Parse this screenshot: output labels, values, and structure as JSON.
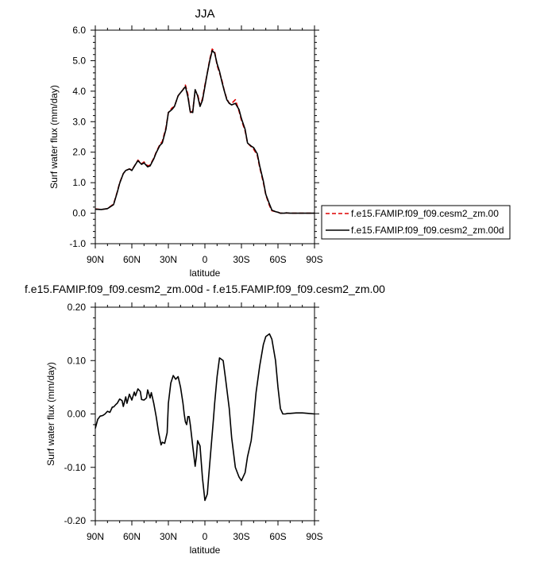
{
  "chart_data": [
    {
      "type": "line",
      "title": "JJA",
      "xlabel": "latitude",
      "ylabel": "Surf water flux (mm/day)",
      "xlim": [
        90,
        -90
      ],
      "ylim": [
        -1.0,
        6.0
      ],
      "xticks": [
        90,
        60,
        30,
        0,
        -30,
        -60,
        -90
      ],
      "xtick_labels": [
        "90N",
        "60N",
        "30N",
        "0",
        "30S",
        "60S",
        "90S"
      ],
      "yticks": [
        -1,
        0,
        1,
        2,
        3,
        4,
        5,
        6
      ],
      "ytick_labels": [
        "-1.0",
        "0.0",
        "1.0",
        "2.0",
        "3.0",
        "4.0",
        "5.0",
        "6.0"
      ],
      "grid": false,
      "legend": "outside-right",
      "series": [
        {
          "name": "f.e15.FAMIP.f09_f09.cesm2_zm.00",
          "color": "#dd0000",
          "dash": "dashed",
          "x": [
            90,
            85,
            80,
            75,
            72,
            70,
            67,
            65,
            62,
            60,
            57,
            55,
            52,
            50,
            47,
            45,
            42,
            40,
            37,
            35,
            32,
            30,
            27,
            25,
            22,
            20,
            18,
            16,
            14,
            12,
            10,
            8,
            6,
            4,
            2,
            0,
            -2,
            -4,
            -6,
            -8,
            -10,
            -12,
            -14,
            -16,
            -18,
            -20,
            -22,
            -25,
            -28,
            -30,
            -33,
            -35,
            -38,
            -40,
            -43,
            -45,
            -48,
            -50,
            -53,
            -55,
            -58,
            -60,
            -62,
            -65,
            -67,
            -70,
            -75,
            -80,
            -85,
            -90
          ],
          "y": [
            0.14,
            0.12,
            0.15,
            0.3,
            0.7,
            1.0,
            1.3,
            1.4,
            1.45,
            1.42,
            1.6,
            1.74,
            1.62,
            1.68,
            1.55,
            1.58,
            1.8,
            2.0,
            2.25,
            2.35,
            2.8,
            3.3,
            3.45,
            3.5,
            3.85,
            3.95,
            4.05,
            4.2,
            3.9,
            3.3,
            3.35,
            4.02,
            3.9,
            3.55,
            3.75,
            4.2,
            4.6,
            5.05,
            5.38,
            5.3,
            4.85,
            4.6,
            4.35,
            4.0,
            3.75,
            3.6,
            3.6,
            3.72,
            3.35,
            3.05,
            2.7,
            2.3,
            2.18,
            2.1,
            1.9,
            1.5,
            1.0,
            0.6,
            0.25,
            0.08,
            0.05,
            0.03,
            0.0,
            0.0,
            0.01,
            0.0,
            0.0,
            0.0,
            0.0,
            0.0
          ]
        },
        {
          "name": "f.e15.FAMIP.f09_f09.cesm2_zm.00d",
          "color": "#000000",
          "dash": "solid",
          "x": [
            90,
            85,
            80,
            75,
            72,
            70,
            67,
            65,
            62,
            60,
            57,
            55,
            52,
            50,
            47,
            45,
            42,
            40,
            37,
            35,
            32,
            30,
            27,
            25,
            22,
            20,
            18,
            16,
            14,
            12,
            10,
            8,
            6,
            4,
            2,
            0,
            -2,
            -4,
            -6,
            -8,
            -10,
            -12,
            -14,
            -16,
            -18,
            -20,
            -22,
            -25,
            -28,
            -30,
            -33,
            -35,
            -38,
            -40,
            -43,
            -45,
            -48,
            -50,
            -53,
            -55,
            -58,
            -60,
            -62,
            -65,
            -67,
            -70,
            -75,
            -80,
            -85,
            -90
          ],
          "y": [
            0.13,
            0.12,
            0.15,
            0.28,
            0.68,
            0.98,
            1.3,
            1.4,
            1.45,
            1.4,
            1.6,
            1.72,
            1.6,
            1.65,
            1.52,
            1.55,
            1.78,
            1.98,
            2.22,
            2.3,
            2.75,
            3.3,
            3.4,
            3.5,
            3.85,
            3.95,
            4.05,
            4.15,
            3.82,
            3.32,
            3.3,
            4.05,
            3.85,
            3.5,
            3.7,
            4.15,
            4.6,
            5.0,
            5.33,
            5.25,
            4.9,
            4.65,
            4.3,
            4.0,
            3.72,
            3.6,
            3.55,
            3.6,
            3.4,
            3.1,
            2.75,
            2.3,
            2.2,
            2.15,
            1.95,
            1.55,
            1.05,
            0.62,
            0.3,
            0.1,
            0.05,
            0.03,
            0.0,
            0.0,
            0.01,
            0.0,
            0.0,
            0.0,
            0.0,
            0.0
          ]
        }
      ]
    },
    {
      "type": "line",
      "title": "f.e15.FAMIP.f09_f09.cesm2_zm.00d - f.e15.FAMIP.f09_f09.cesm2_zm.00",
      "xlabel": "latitude",
      "ylabel": "Surf water flux (mm/day)",
      "xlim": [
        90,
        -90
      ],
      "ylim": [
        -0.2,
        0.2
      ],
      "xticks": [
        90,
        60,
        30,
        0,
        -30,
        -60,
        -90
      ],
      "xtick_labels": [
        "90N",
        "60N",
        "30N",
        "0",
        "30S",
        "60S",
        "90S"
      ],
      "yticks": [
        -0.2,
        -0.1,
        0.0,
        0.1,
        0.2
      ],
      "ytick_labels": [
        "-0.20",
        "-0.10",
        "0.00",
        "0.10",
        "0.20"
      ],
      "grid": false,
      "series": [
        {
          "color": "#000000",
          "dash": "solid",
          "x": [
            90,
            88,
            86,
            84,
            82,
            80,
            78,
            76,
            75,
            73,
            72,
            70,
            68,
            67,
            65,
            64,
            62,
            60,
            58,
            57,
            55,
            53,
            52,
            50,
            48,
            47,
            45,
            44,
            42,
            40,
            38,
            36,
            35,
            33,
            31,
            30,
            28,
            26,
            24,
            22,
            20,
            18,
            17,
            16,
            15,
            14,
            13,
            12,
            11,
            10,
            8,
            7,
            6,
            4,
            2,
            0,
            -2,
            -3,
            -5,
            -7,
            -8,
            -10,
            -12,
            -15,
            -17,
            -20,
            -22,
            -25,
            -28,
            -30,
            -33,
            -35,
            -38,
            -40,
            -42,
            -45,
            -48,
            -50,
            -53,
            -55,
            -58,
            -60,
            -62,
            -64,
            -66,
            -68,
            -70,
            -75,
            -80,
            -85,
            -90
          ],
          "y": [
            -0.027,
            -0.01,
            -0.004,
            -0.003,
            0.0,
            0.005,
            0.003,
            0.013,
            0.013,
            0.018,
            0.02,
            0.028,
            0.025,
            0.014,
            0.032,
            0.02,
            0.037,
            0.026,
            0.041,
            0.034,
            0.047,
            0.042,
            0.027,
            0.026,
            0.03,
            0.045,
            0.03,
            0.04,
            0.02,
            -0.005,
            -0.035,
            -0.058,
            -0.053,
            -0.055,
            -0.035,
            0.02,
            0.058,
            0.072,
            0.065,
            0.07,
            0.05,
            0.02,
            0.0,
            -0.015,
            -0.02,
            -0.005,
            -0.005,
            -0.02,
            -0.04,
            -0.06,
            -0.098,
            -0.08,
            -0.05,
            -0.06,
            -0.12,
            -0.162,
            -0.15,
            -0.12,
            -0.065,
            -0.01,
            0.02,
            0.07,
            0.105,
            0.1,
            0.065,
            0.01,
            -0.045,
            -0.1,
            -0.118,
            -0.125,
            -0.11,
            -0.08,
            -0.05,
            -0.01,
            0.04,
            0.09,
            0.13,
            0.145,
            0.15,
            0.14,
            0.1,
            0.05,
            0.01,
            0.0,
            0.0,
            0.001,
            0.001,
            0.002,
            0.002,
            0.001,
            0.0
          ]
        }
      ]
    }
  ]
}
